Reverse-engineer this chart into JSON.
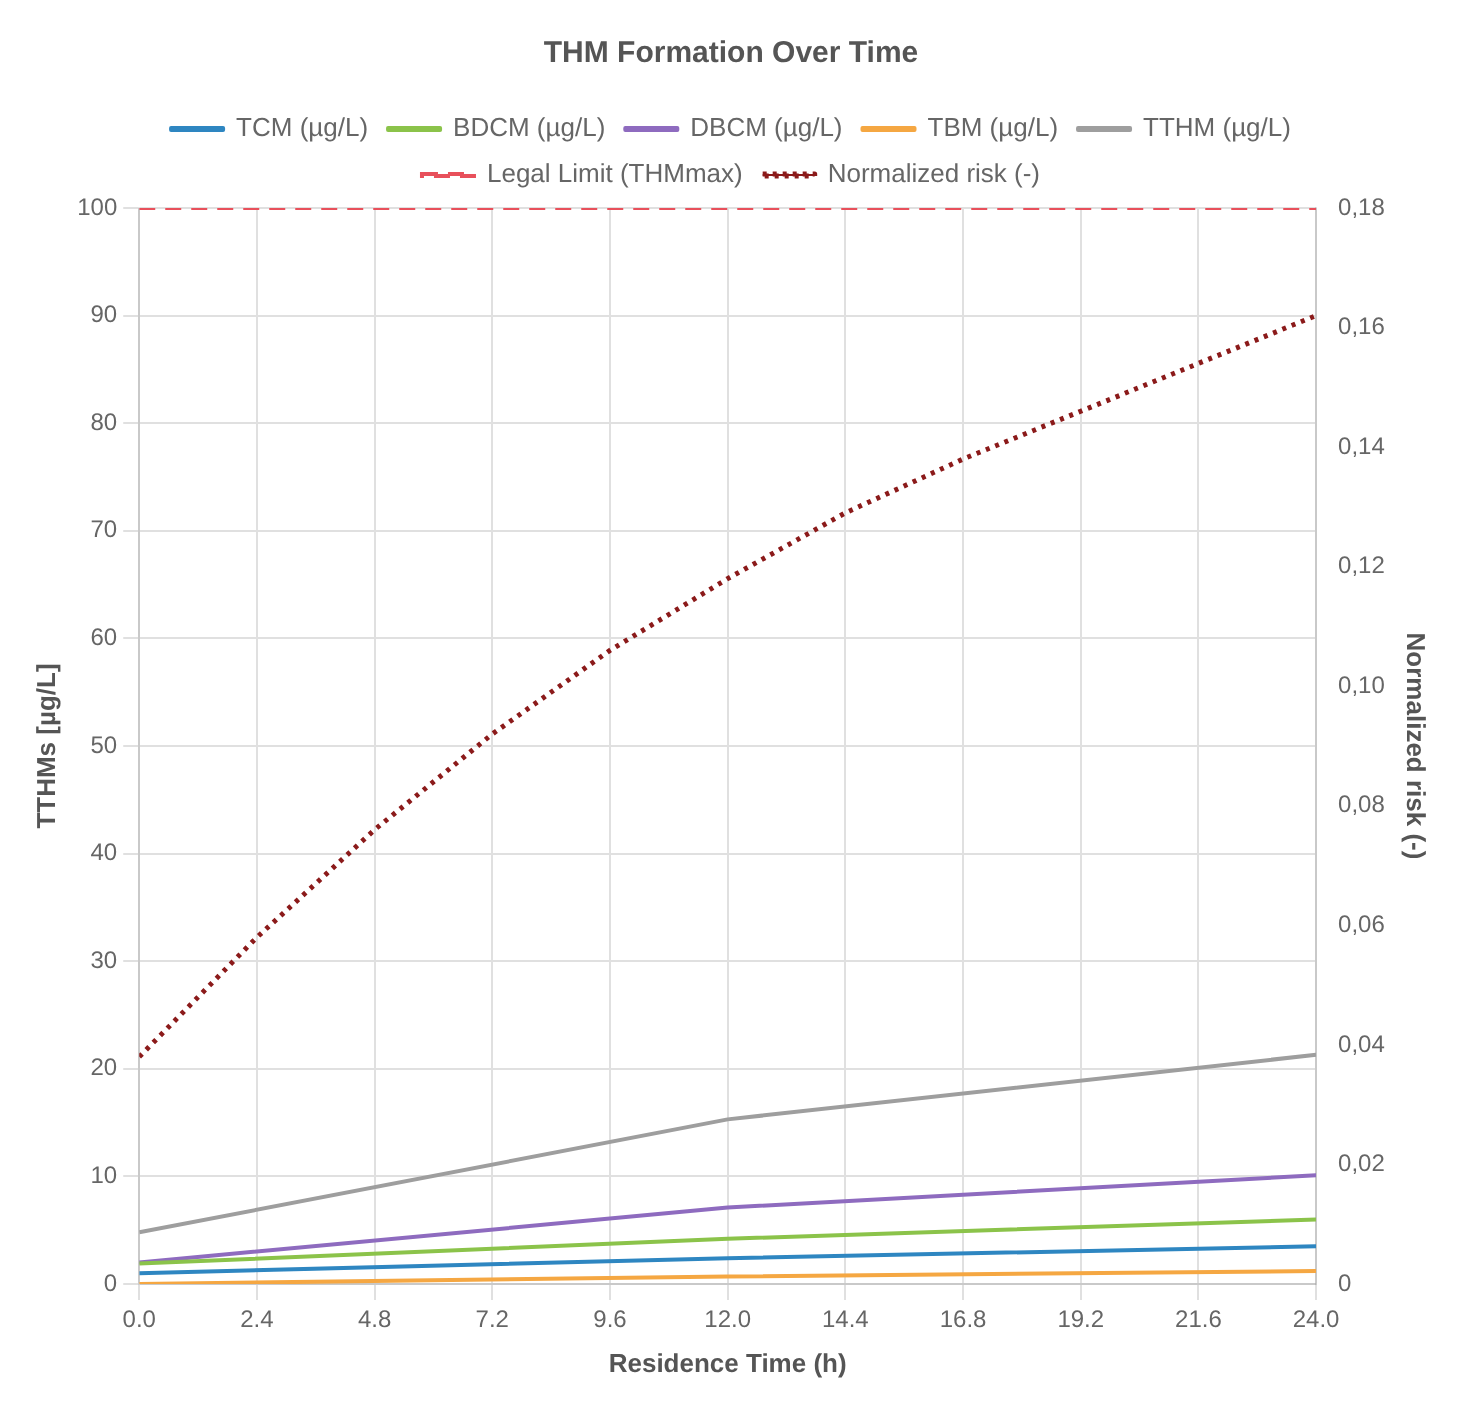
{
  "chart_data": {
    "type": "line",
    "title": "THM Formation Over Time",
    "xlabel": "Residence Time (h)",
    "ylabel": "TTHMs [µg/L]",
    "y2label": "Normalized risk (-)",
    "x": [
      0,
      12,
      24
    ],
    "series": [
      {
        "name": "TCM (µg/L)",
        "color": "#2e86c1",
        "values": [
          1.0,
          2.4,
          3.5
        ]
      },
      {
        "name": "BDCM (µg/L)",
        "color": "#8bc34a",
        "values": [
          1.9,
          4.2,
          6.0
        ]
      },
      {
        "name": "DBCM (µg/L)",
        "color": "#8e6bbf",
        "values": [
          2.0,
          7.1,
          10.1
        ]
      },
      {
        "name": "TBM (µg/L)",
        "color": "#f5a742",
        "values": [
          0,
          0.7,
          1.2
        ]
      },
      {
        "name": "TTHM (µg/L)",
        "color": "#9e9e9e",
        "values": [
          4.8,
          15.3,
          21.3
        ]
      },
      {
        "name": "Normalized risk (-)",
        "color": "#8b1a1a",
        "axis": "y2",
        "line_style": "dotted",
        "x": [
          0,
          2.4,
          4.8,
          7.2,
          9.6,
          12,
          14.4,
          16.8,
          19.2,
          21.6,
          24
        ],
        "values": [
          0.038,
          0.058,
          0.076,
          0.092,
          0.106,
          0.118,
          0.129,
          0.138,
          0.146,
          0.154,
          0.162
        ]
      }
    ],
    "ref_lines": [
      {
        "axis": "y",
        "value": 100,
        "label": "Legal Limit (THMmax)",
        "color": "#e8505b",
        "line_style": "dashed"
      }
    ],
    "xlim": [
      0,
      24
    ],
    "xticks": [
      {
        "value": 0,
        "label": "0.0"
      },
      {
        "value": 2.4,
        "label": "2.4"
      },
      {
        "value": 4.8,
        "label": "4.8"
      },
      {
        "value": 7.2,
        "label": "7.2"
      },
      {
        "value": 9.6,
        "label": "9.6"
      },
      {
        "value": 12,
        "label": "12.0"
      },
      {
        "value": 14.4,
        "label": "14.4"
      },
      {
        "value": 16.8,
        "label": "16.8"
      },
      {
        "value": 19.2,
        "label": "19.2"
      },
      {
        "value": 21.6,
        "label": "21.6"
      },
      {
        "value": 24,
        "label": "24.0"
      }
    ],
    "ylim": [
      0,
      100
    ],
    "yticks": [
      0,
      10,
      20,
      30,
      40,
      50,
      60,
      70,
      80,
      90,
      100
    ],
    "y2lim": [
      0,
      0.18
    ],
    "y2ticks": [
      0,
      {
        "value": 0.02,
        "label": "0,02"
      },
      {
        "value": 0.04,
        "label": "0,04"
      },
      {
        "value": 0.06,
        "label": "0,06"
      },
      {
        "value": 0.08,
        "label": "0,08"
      },
      {
        "value": 0.1,
        "label": "0,10"
      },
      {
        "value": 0.12,
        "label": "0,12"
      },
      {
        "value": 0.14,
        "label": "0,14"
      },
      {
        "value": 0.16,
        "label": "0,16"
      },
      {
        "value": 0.18,
        "label": "0,18"
      }
    ],
    "grid": true,
    "legend": "top",
    "marker": "none",
    "line_style": "solid"
  }
}
